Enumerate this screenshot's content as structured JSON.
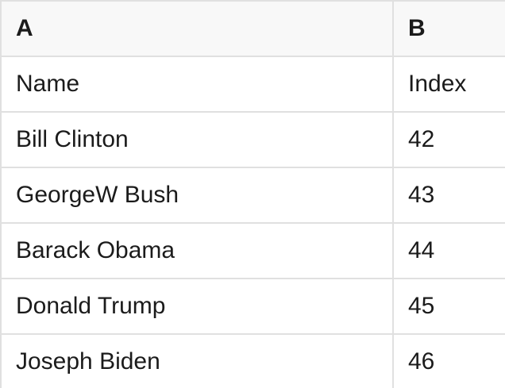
{
  "table": {
    "columns": [
      {
        "label": "A"
      },
      {
        "label": "B"
      }
    ],
    "rows": [
      [
        "Name",
        "Index"
      ],
      [
        "Bill Clinton",
        "42"
      ],
      [
        "GeorgeW Bush",
        "43"
      ],
      [
        "Barack Obama",
        "44"
      ],
      [
        "Donald Trump",
        "45"
      ],
      [
        "Joseph Biden",
        "46"
      ]
    ]
  },
  "colors": {
    "header_bg": "#f8f8f8",
    "border": "#e0e0e0",
    "text": "#1b1b1b",
    "row_bg": "#ffffff"
  }
}
